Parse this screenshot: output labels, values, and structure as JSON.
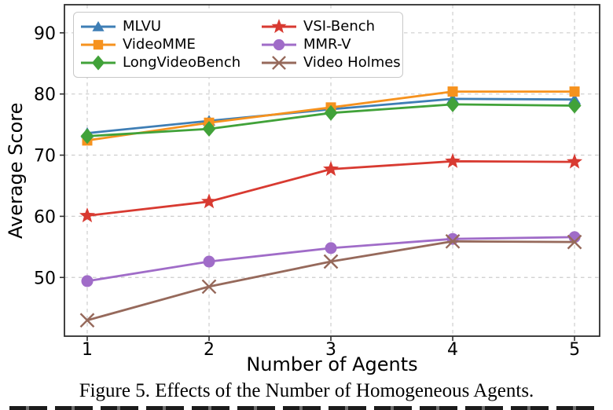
{
  "figure": {
    "caption": "Figure 5. Effects of the Number of Homogeneous Agents."
  },
  "chart_data": {
    "type": "line",
    "title": "",
    "xlabel": "Number of Agents",
    "ylabel": "Average Score",
    "x": [
      1,
      2,
      3,
      4,
      5
    ],
    "xticks": [
      1,
      2,
      3,
      4,
      5
    ],
    "yticks": [
      50,
      60,
      70,
      80,
      90
    ],
    "xlim": [
      0.813,
      5.206
    ],
    "ylim": [
      40.4,
      94.6
    ],
    "grid": true,
    "grid_style": "dashed",
    "legend_position": "upper-left",
    "legend_columns": 2,
    "colors": {
      "grid": "#cdcdcd",
      "spine": "#2d2d2d",
      "text": "#000000"
    },
    "series": [
      {
        "name": "MLVU",
        "marker": "triangle-up",
        "color": "#3e7eb5",
        "values": [
          73.6,
          75.6,
          77.5,
          79.2,
          79.1
        ]
      },
      {
        "name": "VideoMME",
        "marker": "square",
        "color": "#f6921e",
        "values": [
          72.4,
          75.3,
          77.8,
          80.4,
          80.4
        ]
      },
      {
        "name": "LongVideoBench",
        "marker": "diamond",
        "color": "#41a239",
        "values": [
          73.1,
          74.3,
          76.9,
          78.3,
          78.1
        ]
      },
      {
        "name": "VSI-Bench",
        "marker": "star",
        "color": "#d83a31",
        "values": [
          60.1,
          62.4,
          67.7,
          69.0,
          68.9
        ]
      },
      {
        "name": "MMR-V",
        "marker": "circle",
        "color": "#a06cc8",
        "values": [
          49.4,
          52.6,
          54.8,
          56.3,
          56.6
        ]
      },
      {
        "name": "Video Holmes",
        "marker": "x",
        "color": "#96695b",
        "values": [
          43.0,
          48.5,
          52.6,
          55.9,
          55.8
        ]
      }
    ]
  }
}
